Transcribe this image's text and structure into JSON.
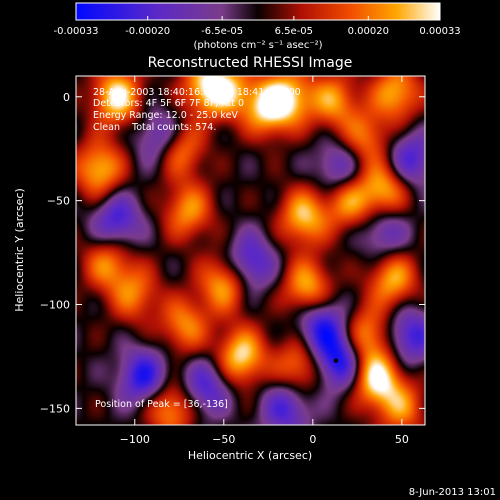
{
  "chart_data": {
    "type": "heatmap",
    "title": "Reconstructed RHESSI Image",
    "xlabel": "Heliocentric X (arcsec)",
    "ylabel": "Heliocentric Y (arcsec)",
    "xlim": [
      -133,
      63
    ],
    "ylim": [
      -158,
      10
    ],
    "xticks": [
      -100,
      -50,
      0,
      50
    ],
    "yticks": [
      -150,
      -100,
      -50,
      0
    ],
    "colorbar": {
      "label": "(photons cm⁻² s⁻¹ asec⁻²)",
      "ticks": [
        -0.00033,
        -0.0002,
        -6.5e-05,
        6.5e-05,
        0.0002,
        0.00033
      ],
      "tick_labels": [
        "-0.00033",
        "-0.00020",
        "-6.5e-05",
        "6.5e-05",
        "0.00020",
        "0.00033"
      ],
      "range": [
        -0.00033,
        0.00033
      ]
    },
    "annotations": [
      "28-Aug-2003 18:40:16.000 to 18:41:48.000",
      "Detectors: 4F 5F 6F 7F 8F, Att 0",
      "Energy Range: 12.0 - 25.0 keV",
      "Clean    Total counts: 574."
    ],
    "peak_label": "Position of Peak = [36,-136]",
    "peak": [
      36,
      -136
    ],
    "marker": [
      13,
      -127
    ],
    "grid": false,
    "sources": [
      {
        "x": -110,
        "y": 0,
        "v": 0.00033
      },
      {
        "x": -120,
        "y": -35,
        "v": 0.00028
      },
      {
        "x": -75,
        "y": -25,
        "v": 0.00025
      },
      {
        "x": -60,
        "y": 5,
        "v": 0.00028
      },
      {
        "x": -47,
        "y": 3,
        "v": 0.00022
      },
      {
        "x": -25,
        "y": -5,
        "v": 0.00031
      },
      {
        "x": -12,
        "y": 0,
        "v": 0.00024
      },
      {
        "x": 12,
        "y": -2,
        "v": 0.00023
      },
      {
        "x": 47,
        "y": 2,
        "v": 0.00026
      },
      {
        "x": 30,
        "y": -20,
        "v": 0.0002
      },
      {
        "x": 40,
        "y": -45,
        "v": 0.00027
      },
      {
        "x": 20,
        "y": -50,
        "v": 0.00024
      },
      {
        "x": -5,
        "y": -58,
        "v": 0.00028
      },
      {
        "x": -70,
        "y": -55,
        "v": 0.00023
      },
      {
        "x": -115,
        "y": -80,
        "v": 0.00022
      },
      {
        "x": -100,
        "y": -95,
        "v": 0.0002
      },
      {
        "x": -50,
        "y": -90,
        "v": 0.00026
      },
      {
        "x": -72,
        "y": -110,
        "v": 0.00022
      },
      {
        "x": -3,
        "y": -92,
        "v": 0.00027
      },
      {
        "x": 45,
        "y": -88,
        "v": 0.00026
      },
      {
        "x": -80,
        "y": -150,
        "v": 0.00025
      },
      {
        "x": -40,
        "y": -125,
        "v": 0.00031
      },
      {
        "x": -8,
        "y": -130,
        "v": 0.00022
      },
      {
        "x": 30,
        "y": -115,
        "v": 0.00024
      },
      {
        "x": 36,
        "y": -136,
        "v": 0.00033
      },
      {
        "x": 50,
        "y": -150,
        "v": 0.0002
      },
      {
        "x": -110,
        "y": -60,
        "v": -0.00024
      },
      {
        "x": -95,
        "y": -135,
        "v": -0.00028
      },
      {
        "x": -60,
        "y": -140,
        "v": -0.00022
      },
      {
        "x": -85,
        "y": -20,
        "v": -0.00022
      },
      {
        "x": -35,
        "y": -80,
        "v": -0.00024
      },
      {
        "x": 15,
        "y": -35,
        "v": -0.0002
      },
      {
        "x": 5,
        "y": -110,
        "v": -0.00027
      },
      {
        "x": 15,
        "y": -127,
        "v": -0.00031
      },
      {
        "x": 55,
        "y": -115,
        "v": -0.00024
      },
      {
        "x": 55,
        "y": -30,
        "v": -0.00022
      },
      {
        "x": -15,
        "y": -150,
        "v": -0.00022
      },
      {
        "x": 40,
        "y": -65,
        "v": -0.00018
      }
    ]
  },
  "footer": {
    "timestamp": "8-Jun-2013 13:01"
  }
}
